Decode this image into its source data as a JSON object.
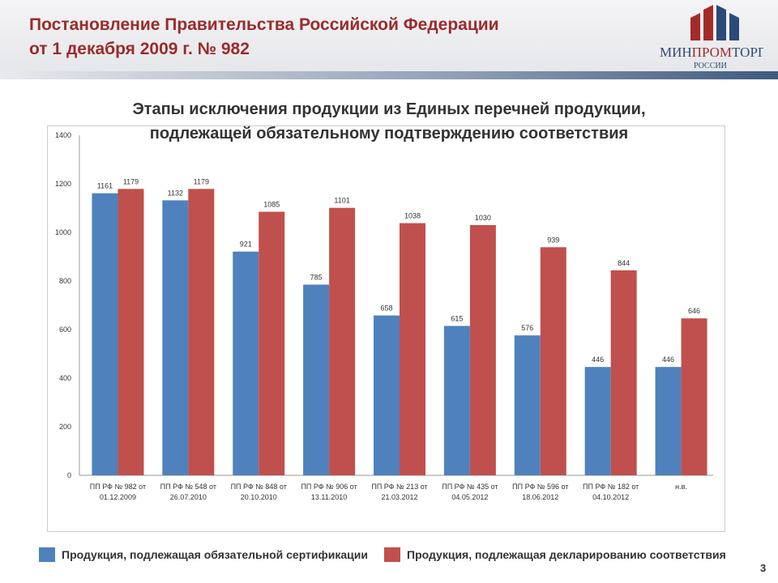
{
  "header": {
    "title_line1": "Постановление Правительства Российской Федерации",
    "title_line2": "от 1 декабря 2009 г. № 982",
    "logo_text": "МИНПРОМТОРГ РОССИИ"
  },
  "page_number": "3",
  "colors": {
    "blue": "#4f81bd",
    "red": "#c0504d",
    "title": "#9b2b2b"
  },
  "chart_data": {
    "type": "bar",
    "title_line1": "Этапы исключения продукции из Единых перечней продукции,",
    "title_line2": "подлежащей обязательному подтверждению соответствия",
    "ylim": [
      0,
      1400
    ],
    "yticks": [
      0,
      200,
      400,
      600,
      800,
      1000,
      1200,
      1400
    ],
    "grid": false,
    "legend_position": "bottom",
    "categories": [
      [
        "ПП РФ № 982 от",
        "01.12.2009"
      ],
      [
        "ПП РФ № 548 от",
        "26.07.2010"
      ],
      [
        "ПП РФ № 848 от",
        "20.10.2010"
      ],
      [
        "ПП РФ № 906 от",
        "13.11.2010"
      ],
      [
        "ПП РФ № 213 от",
        "21.03.2012"
      ],
      [
        "ПП РФ № 435 от",
        "04.05.2012"
      ],
      [
        "ПП РФ № 596 от",
        "18.06.2012"
      ],
      [
        "ПП РФ  № 182 от",
        "04.10.2012"
      ],
      [
        "н.в.",
        ""
      ]
    ],
    "series": [
      {
        "name": "Продукция, подлежащая обязательной сертификации",
        "color": "#4f81bd",
        "values": [
          1161,
          1132,
          921,
          785,
          658,
          615,
          576,
          446,
          446
        ]
      },
      {
        "name": "Продукция, подлежащая декларированию соответствия",
        "color": "#c0504d",
        "values": [
          1179,
          1179,
          1085,
          1101,
          1038,
          1030,
          939,
          844,
          646
        ]
      }
    ]
  }
}
